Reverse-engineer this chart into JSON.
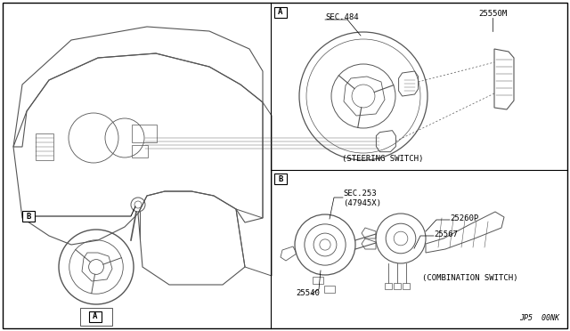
{
  "bg_color": "#ffffff",
  "line_color": "#555555",
  "text_color": "#000000",
  "fig_width": 6.4,
  "fig_height": 3.72,
  "dpi": 100,
  "labels": {
    "sec484": "SEC.484",
    "part_25550M": "25550M",
    "steering_switch": "(STEERING SWITCH)",
    "sec253": "SEC.253",
    "part_47945X": "(47945X)",
    "part_25260P": "25260P",
    "part_25567": "25567",
    "part_25540": "25540",
    "combination_switch": "(COMBINATION SWITCH)",
    "part_code": "JP5  00NK",
    "box_A_label": "A",
    "box_B_label": "B",
    "left_box_A": "A",
    "left_box_B": "B"
  }
}
